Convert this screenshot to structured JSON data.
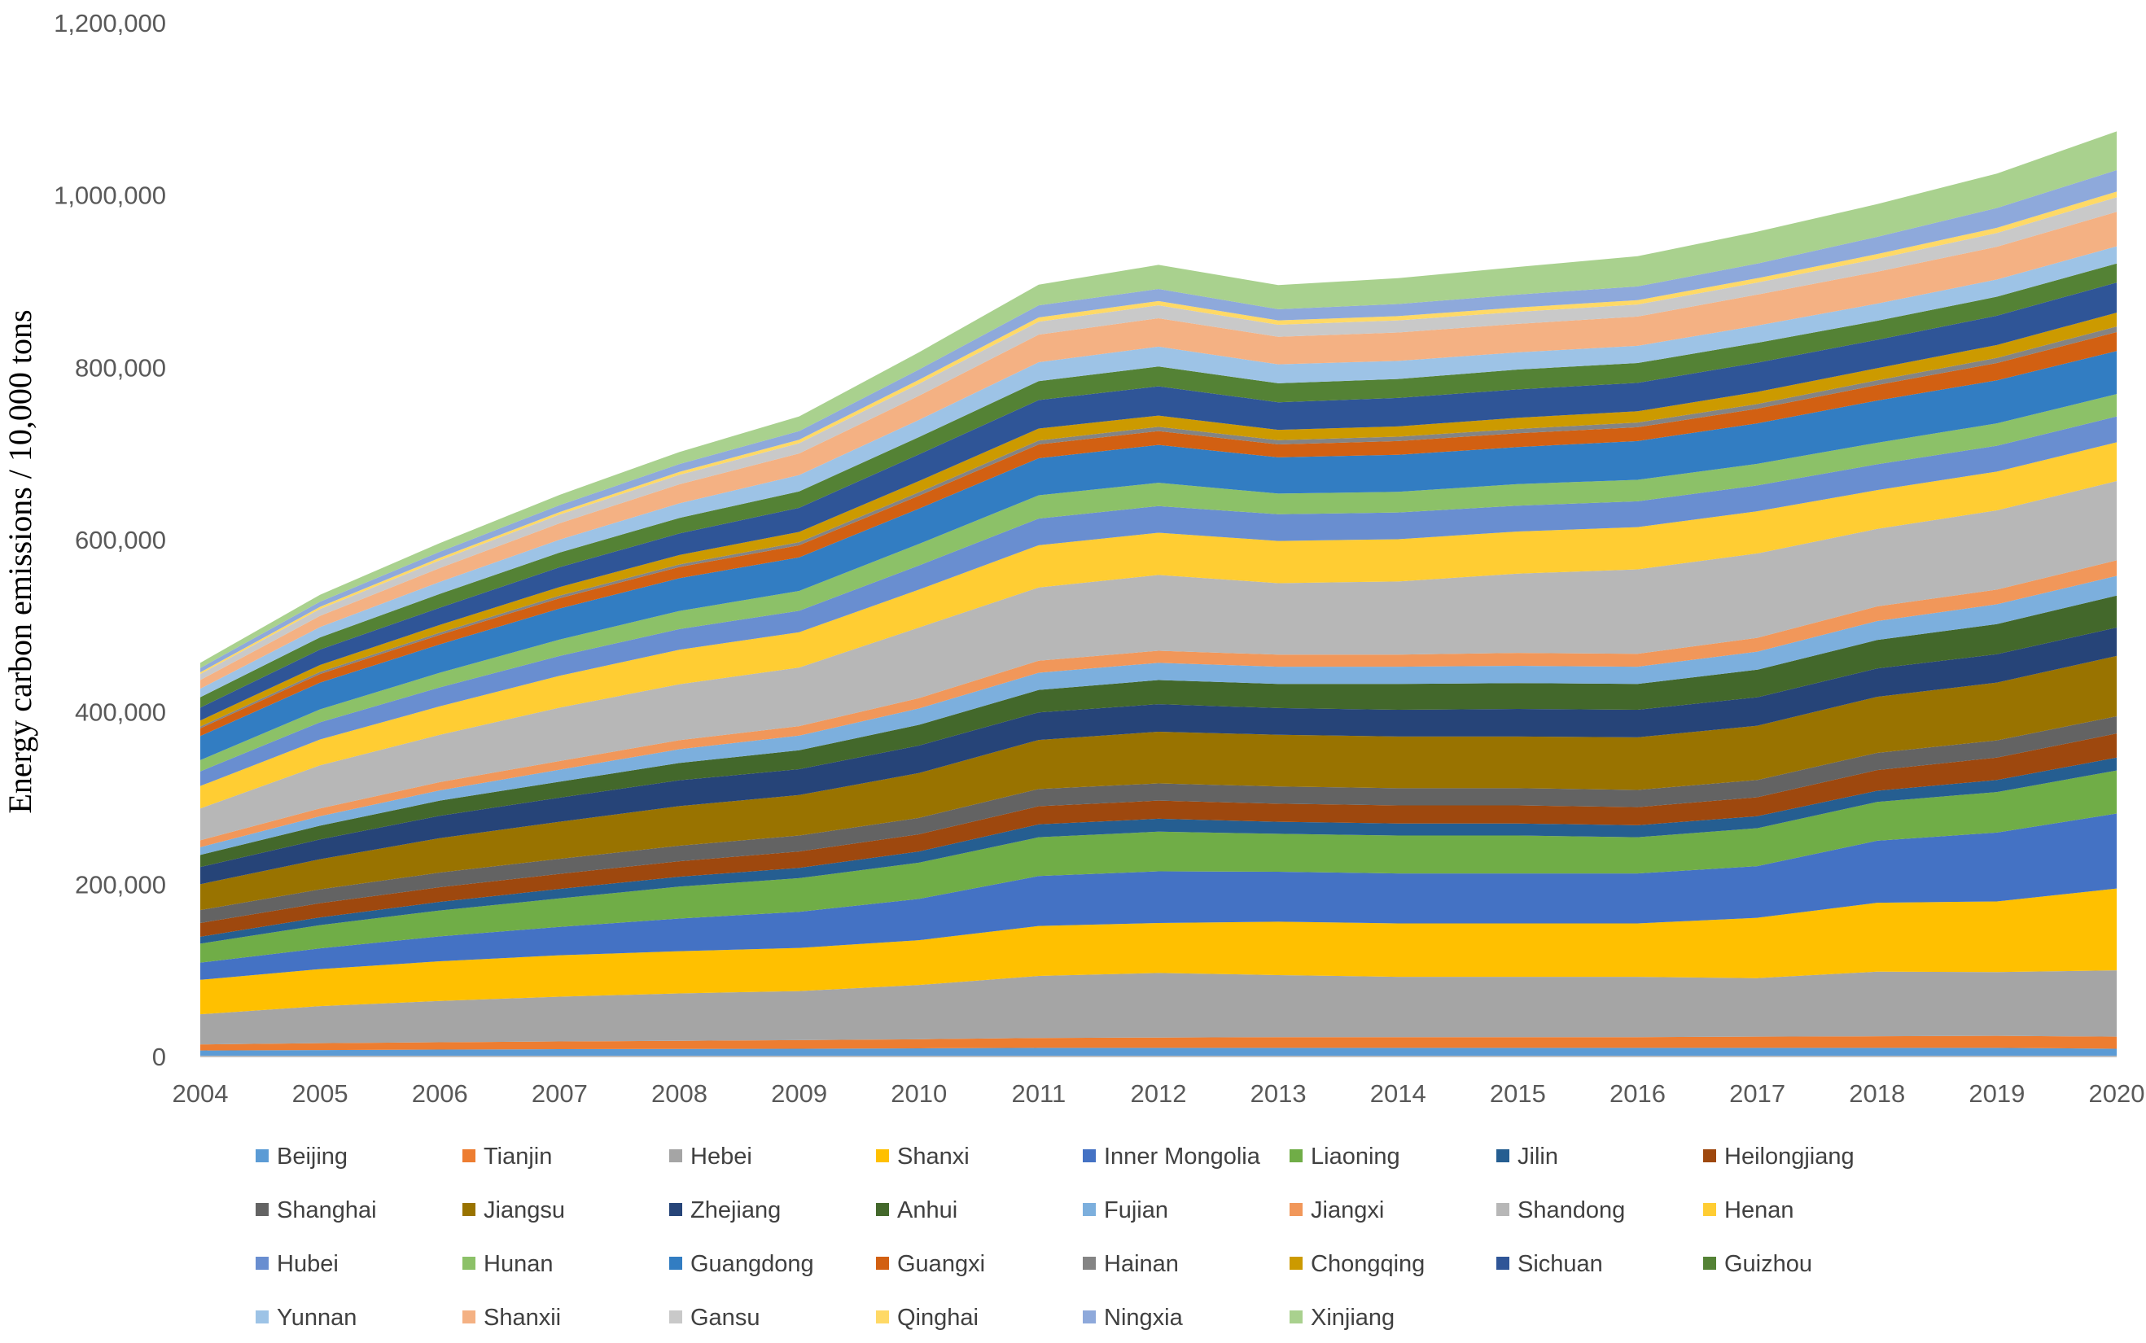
{
  "chart_data": {
    "type": "area",
    "title": "",
    "xlabel": "",
    "ylabel": "Energy carbon emissions / 10,000 tons",
    "x": [
      "2004",
      "2005",
      "2006",
      "2007",
      "2008",
      "2009",
      "2010",
      "2011",
      "2012",
      "2013",
      "2014",
      "2015",
      "2016",
      "2017",
      "2018",
      "2019",
      "2020"
    ],
    "ylim": [
      0,
      1200000
    ],
    "yticks": [
      "0",
      "200,000",
      "400,000",
      "600,000",
      "800,000",
      "1,000,000",
      "1,200,000"
    ],
    "ytick_values": [
      0,
      200000,
      400000,
      600000,
      800000,
      1000000,
      1200000
    ],
    "stacked": true,
    "legend_position": "bottom",
    "series": [
      {
        "name": "Beijing",
        "color": "#5B9BD5",
        "values": [
          7000,
          7500,
          8000,
          8500,
          8700,
          9000,
          9500,
          10000,
          10000,
          10000,
          10000,
          10000,
          10000,
          10000,
          10000,
          10000,
          9000
        ]
      },
      {
        "name": "Tianjin",
        "color": "#ED7D31",
        "values": [
          7000,
          8000,
          8500,
          9000,
          9500,
          10000,
          10500,
          11500,
          12000,
          12500,
          12500,
          12500,
          12500,
          13000,
          13500,
          14000,
          14000
        ]
      },
      {
        "name": "Hebei",
        "color": "#A5A5A5",
        "values": [
          35000,
          43000,
          48000,
          52000,
          55000,
          57000,
          63000,
          72000,
          75000,
          72000,
          70000,
          70000,
          70000,
          68000,
          75000,
          74000,
          77000
        ]
      },
      {
        "name": "Shanxi",
        "color": "#FFC000",
        "values": [
          40000,
          43000,
          46000,
          48000,
          49000,
          50000,
          52000,
          58000,
          58000,
          62000,
          62000,
          62000,
          62000,
          70000,
          80000,
          82000,
          95000
        ]
      },
      {
        "name": "Inner Mongolia",
        "color": "#4472C4",
        "values": [
          20000,
          24000,
          29000,
          33000,
          38000,
          42000,
          48000,
          58000,
          60000,
          58000,
          58000,
          58000,
          58000,
          60000,
          72000,
          80000,
          87000
        ]
      },
      {
        "name": "Liaoning",
        "color": "#70AD47",
        "values": [
          22000,
          27000,
          30000,
          33000,
          37000,
          39000,
          42000,
          45000,
          46000,
          44000,
          44000,
          44000,
          42000,
          44000,
          45000,
          47000,
          50000
        ]
      },
      {
        "name": "Jilin",
        "color": "#255E91",
        "values": [
          8000,
          9000,
          10000,
          11000,
          11500,
          12000,
          13000,
          15000,
          15000,
          14000,
          14000,
          14000,
          14000,
          14000,
          13000,
          14000,
          15000
        ]
      },
      {
        "name": "Heilongjiang",
        "color": "#9E480E",
        "values": [
          16000,
          16500,
          17000,
          17500,
          18000,
          19000,
          20000,
          21000,
          21000,
          21000,
          21000,
          21000,
          21000,
          22000,
          24000,
          26000,
          28000
        ]
      },
      {
        "name": "Shanghai",
        "color": "#636363",
        "values": [
          15000,
          16000,
          17000,
          17500,
          18000,
          18500,
          19000,
          20000,
          20000,
          20000,
          20000,
          20000,
          20000,
          20000,
          20000,
          20000,
          20000
        ]
      },
      {
        "name": "Jiangsu",
        "color": "#997300",
        "values": [
          30000,
          35000,
          40000,
          43000,
          46000,
          47000,
          52000,
          57000,
          60000,
          60000,
          60000,
          60000,
          61000,
          63000,
          65000,
          67000,
          70000
        ]
      },
      {
        "name": "Zhejiang",
        "color": "#264478",
        "values": [
          20000,
          23000,
          26000,
          28000,
          30000,
          30000,
          32000,
          32000,
          32000,
          31000,
          31000,
          32000,
          32000,
          33000,
          33000,
          33000,
          33000
        ]
      },
      {
        "name": "Anhui",
        "color": "#43682B",
        "values": [
          14000,
          16000,
          17500,
          18500,
          20000,
          22000,
          24000,
          26000,
          28000,
          28000,
          30000,
          30000,
          30000,
          32000,
          33000,
          35000,
          37000
        ]
      },
      {
        "name": "Fujian",
        "color": "#7CAFDD",
        "values": [
          9000,
          11000,
          12000,
          14000,
          16000,
          17000,
          19000,
          20000,
          20000,
          20000,
          20000,
          20000,
          20000,
          21000,
          22000,
          23000,
          23000
        ]
      },
      {
        "name": "Jiangxi",
        "color": "#F1975A",
        "values": [
          8000,
          9000,
          9500,
          10000,
          10500,
          11000,
          12000,
          14000,
          14000,
          14000,
          14000,
          15000,
          15000,
          16000,
          17000,
          17000,
          18000
        ]
      },
      {
        "name": "Shandong",
        "color": "#B7B7B7",
        "values": [
          37000,
          50000,
          55000,
          62000,
          65000,
          68000,
          82000,
          85000,
          88000,
          83000,
          85000,
          92000,
          98000,
          98000,
          90000,
          92000,
          92000
        ]
      },
      {
        "name": "Henan",
        "color": "#FFCD33",
        "values": [
          26000,
          30000,
          33000,
          37000,
          40000,
          41000,
          44000,
          49000,
          49000,
          49000,
          49000,
          49000,
          49000,
          49000,
          45000,
          45000,
          45000
        ]
      },
      {
        "name": "Hubei",
        "color": "#698ED0",
        "values": [
          17000,
          20000,
          22000,
          23000,
          24000,
          25000,
          28000,
          31000,
          31000,
          31000,
          31000,
          30000,
          30000,
          30000,
          30000,
          30000,
          30000
        ]
      },
      {
        "name": "Hunan",
        "color": "#8CC168",
        "values": [
          13000,
          15000,
          17000,
          19000,
          21000,
          23000,
          25000,
          27000,
          27000,
          24000,
          24000,
          25000,
          25000,
          25000,
          25000,
          26000,
          26000
        ]
      },
      {
        "name": "Guangdong",
        "color": "#327DC2",
        "values": [
          28000,
          31000,
          33000,
          36000,
          38000,
          39000,
          41000,
          43000,
          44000,
          42000,
          43000,
          43000,
          45000,
          47000,
          49000,
          50000,
          50000
        ]
      },
      {
        "name": "Guangxi",
        "color": "#D26012",
        "values": [
          9000,
          10000,
          11000,
          12000,
          13000,
          14000,
          15000,
          16000,
          16000,
          15000,
          16000,
          16000,
          16000,
          17000,
          18000,
          20000,
          22000
        ]
      },
      {
        "name": "Hainan",
        "color": "#848484",
        "values": [
          2000,
          2500,
          2500,
          3000,
          3000,
          3500,
          4000,
          4500,
          5000,
          5000,
          5000,
          5000,
          5500,
          5500,
          5500,
          6000,
          6500
        ]
      },
      {
        "name": "Chongqing",
        "color": "#CC9A00",
        "values": [
          7000,
          8000,
          9000,
          10000,
          11000,
          12000,
          13000,
          14000,
          13000,
          12000,
          12000,
          13000,
          13000,
          14000,
          14000,
          15000,
          16000
        ]
      },
      {
        "name": "Sichuan",
        "color": "#2F5597",
        "values": [
          15000,
          18000,
          20000,
          23000,
          25000,
          28000,
          31000,
          33000,
          34000,
          32000,
          33000,
          33000,
          33000,
          34000,
          33000,
          34000,
          35000
        ]
      },
      {
        "name": "Guizhou",
        "color": "#548235",
        "values": [
          12000,
          14000,
          16000,
          17000,
          18000,
          19000,
          20000,
          22000,
          23000,
          22000,
          22000,
          23000,
          23000,
          23000,
          22000,
          22000,
          22000
        ]
      },
      {
        "name": "Yunnan",
        "color": "#9DC3E6",
        "values": [
          10000,
          12000,
          14000,
          15000,
          17000,
          19000,
          20000,
          22000,
          23000,
          22000,
          21000,
          20000,
          20000,
          20000,
          20000,
          20000,
          20000
        ]
      },
      {
        "name": "Shanxii",
        "color": "#F4B183",
        "values": [
          10000,
          13000,
          16000,
          19000,
          22000,
          25000,
          28000,
          32000,
          33000,
          32000,
          33000,
          33000,
          34000,
          36000,
          37000,
          38000,
          40000
        ]
      },
      {
        "name": "Gansu",
        "color": "#C9C9C9",
        "values": [
          7000,
          8000,
          9000,
          10000,
          11000,
          12000,
          14000,
          15000,
          15000,
          14000,
          14000,
          14000,
          14000,
          14000,
          15000,
          16000,
          17000
        ]
      },
      {
        "name": "Qinghai",
        "color": "#FFD966",
        "values": [
          2000,
          2500,
          3000,
          3000,
          3500,
          4000,
          4500,
          5000,
          5000,
          5000,
          5000,
          5000,
          5000,
          5000,
          5500,
          6000,
          6500
        ]
      },
      {
        "name": "Ningxia",
        "color": "#8EA9DB",
        "values": [
          5000,
          6000,
          7000,
          8000,
          9000,
          10000,
          12000,
          14000,
          14000,
          13000,
          14000,
          15000,
          16000,
          17000,
          20000,
          23000,
          25000
        ]
      },
      {
        "name": "Xinjiang",
        "color": "#A9D18E",
        "values": [
          6000,
          8000,
          10000,
          12000,
          14000,
          17000,
          20000,
          24000,
          28000,
          28000,
          30000,
          32000,
          35000,
          37000,
          38000,
          40000,
          45000
        ]
      }
    ]
  }
}
